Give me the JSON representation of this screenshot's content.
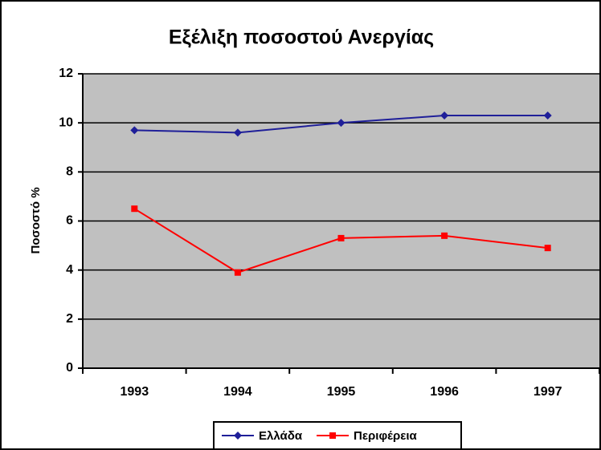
{
  "chart_data": {
    "type": "line",
    "title": "Εξέλιξη ποσοστού Ανεργίας",
    "y_label": "Ποσοστό %",
    "categories": [
      "1993",
      "1994",
      "1995",
      "1996",
      "1997"
    ],
    "series": [
      {
        "name": "Ελλάδα",
        "color": "#1f1f99",
        "marker": "diamond",
        "values": [
          9.7,
          9.6,
          10.0,
          10.3,
          10.3
        ]
      },
      {
        "name": "Περιφέρεια",
        "color": "#ff0000",
        "marker": "square",
        "values": [
          6.5,
          3.9,
          5.3,
          5.4,
          4.9
        ]
      }
    ],
    "ylim": [
      0,
      12
    ],
    "yticks": [
      0,
      2,
      4,
      6,
      8,
      10,
      12
    ],
    "grid": true,
    "legend": "bottom"
  }
}
